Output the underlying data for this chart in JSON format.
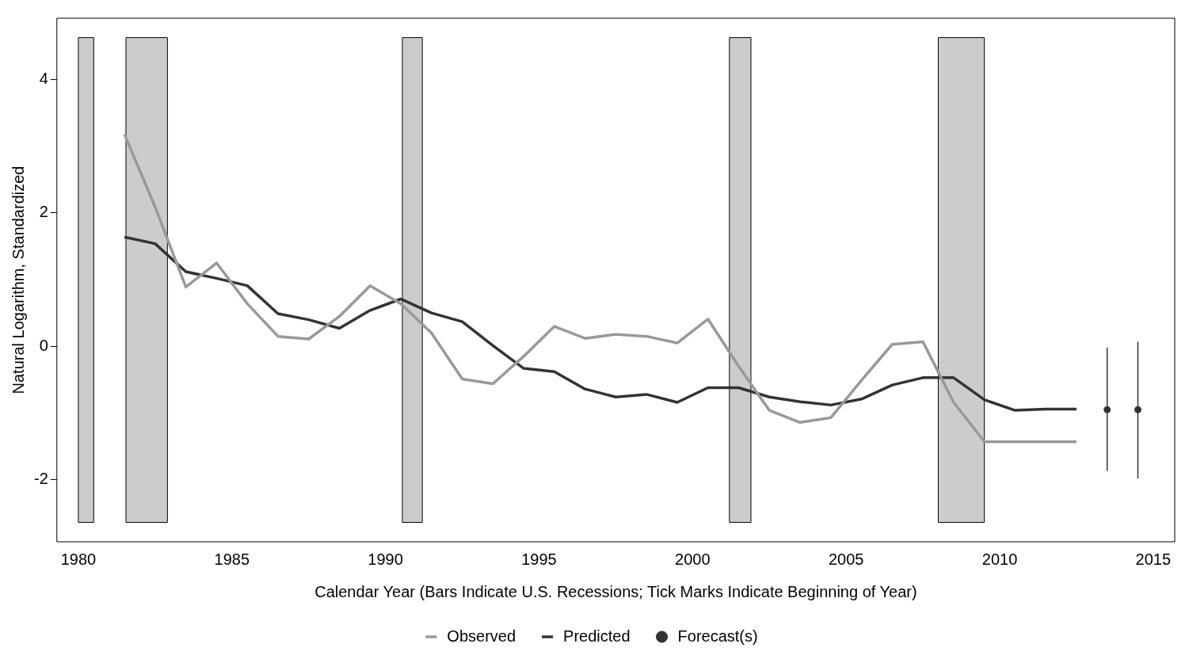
{
  "chart_data": {
    "type": "line",
    "xlabel": "Calendar Year (Bars Indicate U.S. Recessions; Tick Marks Indicate Beginning of Year)",
    "ylabel": "Natural Logarithm, Standardized",
    "x": [
      1981.5,
      1982.5,
      1983.5,
      1984.5,
      1985.5,
      1986.5,
      1987.5,
      1988.5,
      1989.5,
      1990.5,
      1991.5,
      1992.5,
      1993.5,
      1994.5,
      1995.5,
      1996.5,
      1997.5,
      1998.5,
      1999.5,
      2000.5,
      2001.5,
      2002.5,
      2003.5,
      2004.5,
      2005.5,
      2006.5,
      2007.5,
      2008.5,
      2009.5,
      2010.5,
      2011.5,
      2012.5
    ],
    "series": [
      {
        "name": "Observed",
        "color": "#999999",
        "values": [
          3.18,
          2.09,
          0.89,
          1.25,
          0.64,
          0.15,
          0.11,
          0.45,
          0.91,
          0.64,
          0.2,
          -0.49,
          -0.56,
          -0.15,
          0.3,
          0.12,
          0.18,
          0.15,
          0.05,
          0.41,
          -0.3,
          -0.96,
          -1.14,
          -1.07,
          -0.51,
          0.03,
          0.07,
          -0.84,
          -1.43,
          -1.43,
          -1.43,
          -1.43
        ]
      },
      {
        "name": "Predicted",
        "color": "#333333",
        "values": [
          1.64,
          1.54,
          1.12,
          1.02,
          0.91,
          0.49,
          0.4,
          0.27,
          0.54,
          0.71,
          0.5,
          0.37,
          0.01,
          -0.33,
          -0.38,
          -0.64,
          -0.76,
          -0.72,
          -0.84,
          -0.62,
          -0.62,
          -0.76,
          -0.83,
          -0.88,
          -0.79,
          -0.58,
          -0.47,
          -0.47,
          -0.8,
          -0.96,
          -0.94,
          -0.94
        ]
      },
      {
        "name": "Forecast(s)",
        "type": "scatter",
        "marker": "circle",
        "color": "#333333",
        "x": [
          2013.5,
          2014.5
        ],
        "values": [
          -0.95,
          -0.95
        ],
        "errors": [
          [
            -1.87,
            -0.02
          ],
          [
            -1.98,
            0.07
          ]
        ]
      }
    ],
    "bands": [
      {
        "axis": "x",
        "from": 1980.0,
        "to": 1980.5,
        "color": "#cccccc"
      },
      {
        "axis": "x",
        "from": 1981.55,
        "to": 1982.9,
        "color": "#cccccc"
      },
      {
        "axis": "x",
        "from": 1990.55,
        "to": 1991.2,
        "color": "#cccccc"
      },
      {
        "axis": "x",
        "from": 2001.2,
        "to": 2001.9,
        "color": "#cccccc"
      },
      {
        "axis": "x",
        "from": 2008.0,
        "to": 2009.5,
        "color": "#cccccc"
      }
    ],
    "xlim": [
      1979.3,
      2015.7
    ],
    "xticks": [
      1980,
      1985,
      1990,
      1995,
      2000,
      2005,
      2010,
      2015
    ],
    "ylim": [
      -2.93,
      4.92
    ],
    "yticks": [
      -2,
      0,
      2,
      4
    ],
    "grid": false,
    "legend": "bottom",
    "marker": "none",
    "line_style": "solid"
  }
}
